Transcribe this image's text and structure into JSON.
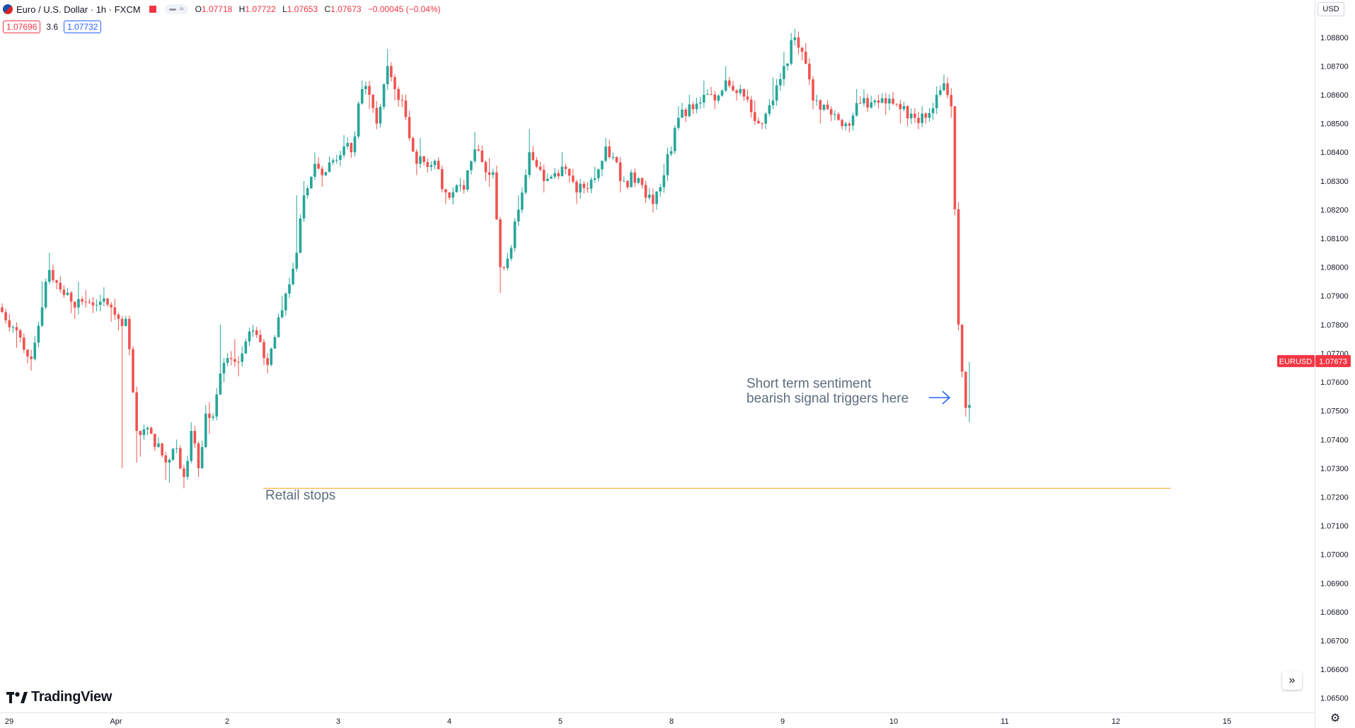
{
  "header": {
    "symbol": "Euro / U.S. Dollar · 1h · FXCM",
    "ohlc": [
      {
        "k": "O",
        "v": "1.07718"
      },
      {
        "k": "H",
        "v": "1.07722"
      },
      {
        "k": "L",
        "v": "1.07653"
      },
      {
        "k": "C",
        "v": "1.07673"
      },
      {
        "k": "",
        "v": "−0.00045 (−0.04%)"
      }
    ],
    "pill_symbol": "≈"
  },
  "quotes": {
    "bid": "1.07696",
    "spread": "3.6",
    "ask": "1.07732"
  },
  "currency_button": "USD",
  "brand": "TradingView",
  "colors": {
    "up": "#26a69a",
    "down": "#ef5350",
    "level": "#f5a623",
    "annotation": "#5d6d80",
    "arrow": "#2962ff",
    "price_tag": "#f23645"
  },
  "chart_data": {
    "type": "candlestick",
    "title": "Euro / U.S. Dollar · 1h · FXCM",
    "ylim": [
      1.0645,
      1.0893
    ],
    "y_ticks": [
      "1.08800",
      "1.08700",
      "1.08600",
      "1.08500",
      "1.08400",
      "1.08300",
      "1.08200",
      "1.08100",
      "1.08000",
      "1.07900",
      "1.07800",
      "1.07700",
      "1.07600",
      "1.07500",
      "1.07400",
      "1.07300",
      "1.07200",
      "1.07100",
      "1.07000",
      "1.06900",
      "1.06800",
      "1.06700",
      "1.06600",
      "1.06500"
    ],
    "x_ticks": [
      "29",
      "Apr",
      "2",
      "3",
      "4",
      "5",
      "8",
      "9",
      "10",
      "11",
      "12",
      "15"
    ],
    "current_price": {
      "symbol": "EURUSD",
      "value": "1.07673",
      "price": 1.07673
    },
    "level": {
      "name": "Retail stops",
      "price": 1.0723
    },
    "annotation": {
      "line1": "Short term sentiment",
      "line2": "bearish signal triggers here",
      "arrow": "→"
    },
    "segments": [
      [
        1.0786,
        1.0789,
        1.0783,
        0
      ],
      [
        1.0778,
        1.0785,
        1.0772,
        5
      ],
      [
        1.0768,
        1.0778,
        1.0764,
        4
      ],
      [
        1.0786,
        1.0795,
        1.078,
        3
      ],
      [
        1.0799,
        1.0805,
        1.0789,
        2
      ],
      [
        1.0788,
        1.08,
        1.0784,
        6
      ],
      [
        1.0788,
        1.0795,
        1.0782,
        3
      ],
      [
        1.0788,
        1.0792,
        1.0784,
        5
      ],
      [
        1.0786,
        1.0793,
        1.0781,
        3
      ],
      [
        1.0782,
        1.0789,
        1.0778,
        2
      ],
      [
        1.0782,
        1.0783,
        1.073,
        2
      ],
      [
        1.0743,
        1.0745,
        1.0732,
        3
      ],
      [
        1.0742,
        1.0744,
        1.0734,
        4
      ],
      [
        1.0732,
        1.0739,
        1.0726,
        4
      ],
      [
        1.0737,
        1.074,
        1.0725,
        3
      ],
      [
        1.0727,
        1.0731,
        1.0723,
        2
      ],
      [
        1.0743,
        1.0746,
        1.0727,
        2
      ],
      [
        1.073,
        1.0743,
        1.0727,
        2
      ],
      [
        1.0749,
        1.0752,
        1.0738,
        2
      ],
      [
        1.0748,
        1.0753,
        1.0742,
        2
      ],
      [
        1.0763,
        1.078,
        1.0755,
        2
      ],
      [
        1.0768,
        1.077,
        1.076,
        3
      ],
      [
        1.0767,
        1.0775,
        1.0762,
        2
      ],
      [
        1.0778,
        1.078,
        1.0768,
        4
      ],
      [
        1.0766,
        1.0774,
        1.0763,
        4
      ],
      [
        1.0785,
        1.079,
        1.0776,
        4
      ],
      [
        1.0805,
        1.0825,
        1.08,
        4
      ],
      [
        1.0825,
        1.083,
        1.082,
        2
      ],
      [
        1.0836,
        1.084,
        1.083,
        3
      ],
      [
        1.0832,
        1.0838,
        1.0828,
        2
      ],
      [
        1.0842,
        1.0846,
        1.0838,
        6
      ],
      [
        1.084,
        1.0843,
        1.0838,
        2
      ],
      [
        1.0862,
        1.0865,
        1.084,
        3
      ],
      [
        1.086,
        1.0864,
        1.0855,
        2
      ],
      [
        1.085,
        1.086,
        1.0848,
        2
      ],
      [
        1.087,
        1.0876,
        1.0858,
        3
      ],
      [
        1.0862,
        1.0867,
        1.0858,
        2
      ],
      [
        1.0858,
        1.0862,
        1.0856,
        2
      ],
      [
        1.0836,
        1.0858,
        1.0832,
        4
      ],
      [
        1.0837,
        1.0845,
        1.0833,
        5
      ],
      [
        1.0826,
        1.0836,
        1.0822,
        3
      ],
      [
        1.0827,
        1.083,
        1.0824,
        5
      ],
      [
        1.0841,
        1.0847,
        1.0836,
        3
      ],
      [
        1.0833,
        1.084,
        1.083,
        3
      ],
      [
        1.0833,
        1.0838,
        1.0828,
        2
      ],
      [
        1.08,
        1.0835,
        1.0791,
        2
      ],
      [
        1.0803,
        1.0805,
        1.0799,
        2
      ],
      [
        1.082,
        1.0825,
        1.0815,
        3
      ],
      [
        1.084,
        1.0848,
        1.0838,
        3
      ],
      [
        1.083,
        1.0836,
        1.0826,
        4
      ],
      [
        1.0835,
        1.084,
        1.083,
        5
      ],
      [
        1.0826,
        1.0835,
        1.0822,
        4
      ],
      [
        1.0831,
        1.0835,
        1.0828,
        5
      ],
      [
        1.0842,
        1.0845,
        1.0838,
        3
      ],
      [
        1.083,
        1.0835,
        1.0826,
        5
      ],
      [
        1.0831,
        1.0834,
        1.0828,
        4
      ],
      [
        1.0822,
        1.0826,
        1.0819,
        4
      ],
      [
        1.0832,
        1.0836,
        1.082,
        3
      ],
      [
        1.0852,
        1.0856,
        1.083,
        4
      ],
      [
        1.0855,
        1.086,
        1.0852,
        4
      ],
      [
        1.086,
        1.0865,
        1.0856,
        3
      ],
      [
        1.0858,
        1.0862,
        1.0855,
        3
      ],
      [
        1.0865,
        1.087,
        1.0858,
        3
      ],
      [
        1.0862,
        1.0866,
        1.0858,
        4
      ],
      [
        1.0854,
        1.0862,
        1.0852,
        3
      ],
      [
        1.085,
        1.0858,
        1.0848,
        3
      ],
      [
        1.0858,
        1.0866,
        1.085,
        3
      ],
      [
        1.087,
        1.0875,
        1.0864,
        3
      ],
      [
        1.088,
        1.0883,
        1.087,
        3
      ],
      [
        1.0875,
        1.0882,
        1.0872,
        2
      ],
      [
        1.0858,
        1.0878,
        1.0855,
        3
      ],
      [
        1.0855,
        1.086,
        1.085,
        4
      ],
      [
        1.085,
        1.0856,
        1.0848,
        5
      ],
      [
        1.0857,
        1.0862,
        1.0852,
        4
      ],
      [
        1.0858,
        1.0862,
        1.0854,
        4
      ],
      [
        1.0857,
        1.086,
        1.0853,
        3
      ],
      [
        1.0855,
        1.0858,
        1.085,
        4
      ],
      [
        1.0852,
        1.0856,
        1.0849,
        4
      ],
      [
        1.0852,
        1.0856,
        1.0848,
        3
      ],
      [
        1.086,
        1.0863,
        1.0852,
        3
      ],
      [
        1.0864,
        1.0867,
        1.086,
        2
      ],
      [
        1.0856,
        1.0866,
        1.0852,
        2
      ],
      [
        1.078,
        1.0856,
        1.0778,
        2
      ],
      [
        1.0751,
        1.078,
        1.0748,
        2
      ],
      [
        1.0752,
        1.0767,
        1.0746,
        1
      ]
    ]
  }
}
